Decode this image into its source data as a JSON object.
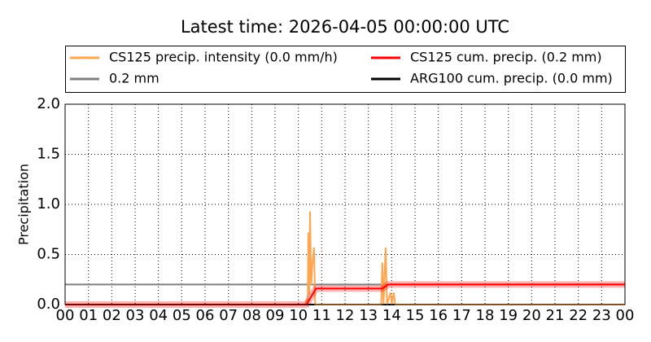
{
  "chart_data": {
    "type": "line",
    "title": "Latest time: 2026-04-05 00:00:00 UTC",
    "y_label": "Precipitation",
    "xlim": [
      0,
      24
    ],
    "xticks": [
      {
        "value": 0,
        "label": "00"
      },
      {
        "value": 1,
        "label": "01"
      },
      {
        "value": 2,
        "label": "02"
      },
      {
        "value": 3,
        "label": "03"
      },
      {
        "value": 4,
        "label": "04"
      },
      {
        "value": 5,
        "label": "05"
      },
      {
        "value": 6,
        "label": "06"
      },
      {
        "value": 7,
        "label": "07"
      },
      {
        "value": 8,
        "label": "08"
      },
      {
        "value": 9,
        "label": "09"
      },
      {
        "value": 10,
        "label": "10"
      },
      {
        "value": 11,
        "label": "11"
      },
      {
        "value": 12,
        "label": "12"
      },
      {
        "value": 13,
        "label": "13"
      },
      {
        "value": 14,
        "label": "14"
      },
      {
        "value": 15,
        "label": "15"
      },
      {
        "value": 16,
        "label": "16"
      },
      {
        "value": 17,
        "label": "17"
      },
      {
        "value": 18,
        "label": "18"
      },
      {
        "value": 19,
        "label": "19"
      },
      {
        "value": 20,
        "label": "20"
      },
      {
        "value": 21,
        "label": "21"
      },
      {
        "value": 22,
        "label": "22"
      },
      {
        "value": 23,
        "label": "23"
      },
      {
        "value": 24,
        "label": "00"
      }
    ],
    "ylim": [
      0,
      2
    ],
    "yticks": [
      {
        "value": 0,
        "label": "0.0"
      },
      {
        "value": 0.5,
        "label": "0.5"
      },
      {
        "value": 1,
        "label": "1.0"
      },
      {
        "value": 1.5,
        "label": "1.5"
      },
      {
        "value": 2,
        "label": "2.0"
      }
    ],
    "grid": true,
    "legend": "top",
    "series": [
      {
        "name": "CS125 precip. intensity (0.0 mm/h)",
        "color": "#ffa54f",
        "x": [
          0,
          10.3,
          10.35,
          10.4,
          10.43,
          10.47,
          10.5,
          10.55,
          10.6,
          10.67,
          10.72,
          13.55,
          13.6,
          13.65,
          13.74,
          13.8,
          13.95,
          14.0,
          14.09,
          14.15,
          24
        ],
        "values": [
          0,
          0,
          0.05,
          0,
          0.72,
          0.1,
          0.93,
          0.2,
          0.4,
          0.57,
          0,
          0,
          0.42,
          0,
          0.57,
          0,
          0.12,
          0,
          0.12,
          0,
          0
        ]
      },
      {
        "name": "CS125 cum. precip. (0.2 mm)",
        "color": "#ff0000",
        "x": [
          0,
          10.35,
          10.75,
          13.6,
          13.85,
          24
        ],
        "values": [
          0,
          0,
          0.16,
          0.16,
          0.2,
          0.2
        ]
      },
      {
        "name": "0.2 mm",
        "color": "#808080",
        "x": [
          0,
          24
        ],
        "values": [
          0.2,
          0.2
        ]
      },
      {
        "name": "ARG100 cum. precip. (0.0 mm)",
        "color": "#000000",
        "x": [
          0,
          24
        ],
        "values": [
          0,
          0
        ]
      }
    ]
  }
}
